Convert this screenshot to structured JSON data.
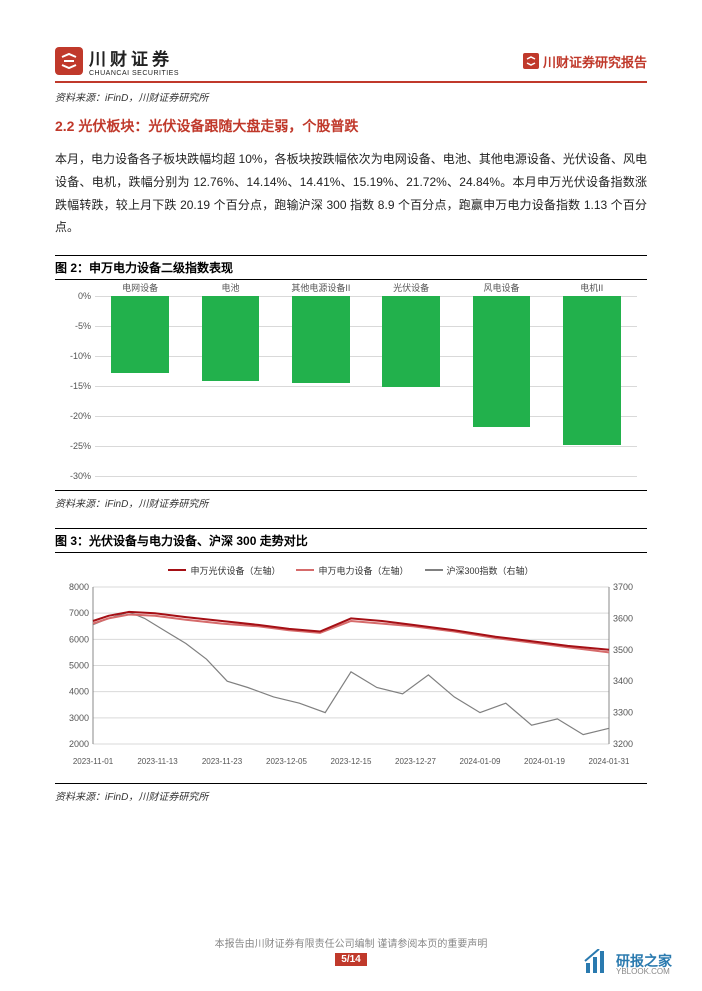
{
  "header": {
    "logo_cn": "川财证券",
    "logo_en": "CHUANCAI SECURITIES",
    "right_label": "川财证券研究报告"
  },
  "source_top": "资料来源：iFinD，川财证券研究所",
  "section_title": "2.2 光伏板块：光伏设备跟随大盘走弱，个股普跌",
  "body_text": "本月，电力设备各子板块跌幅均超 10%，各板块按跌幅依次为电网设备、电池、其他电源设备、光伏设备、风电设备、电机，跌幅分别为 12.76%、14.14%、14.41%、15.19%、21.72%、24.84%。本月申万光伏设备指数涨跌幅转跌，较上月下跌 20.19 个百分点，跑输沪深 300 指数 8.9 个百分点，跑赢申万电力设备指数 1.13 个百分点。",
  "figure2": {
    "title": "图 2：申万电力设备二级指数表现",
    "type": "bar",
    "categories": [
      "电网设备",
      "电池",
      "其他电源设备II",
      "光伏设备",
      "风电设备",
      "电机II"
    ],
    "values": [
      -12.76,
      -14.14,
      -14.41,
      -15.19,
      -21.72,
      -24.84
    ],
    "bar_color": "#22b14c",
    "ylim": [
      -30,
      0
    ],
    "ytick_step": 5,
    "yticks": [
      "0%",
      "-5%",
      "-10%",
      "-15%",
      "-20%",
      "-25%",
      "-30%"
    ],
    "grid_color": "#d9d9d9",
    "label_fontsize": 9,
    "source": "资料来源：iFinD，川财证券研究所"
  },
  "figure3": {
    "title": "图 3：光伏设备与电力设备、沪深 300 走势对比",
    "type": "line",
    "legend": [
      {
        "label": "申万光伏设备（左轴）",
        "color": "#a50f15"
      },
      {
        "label": "申万电力设备（左轴）",
        "color": "#d66b6b"
      },
      {
        "label": "沪深300指数（右轴）",
        "color": "#808080"
      }
    ],
    "left_ylim": [
      2000,
      8000
    ],
    "left_ytick_step": 1000,
    "left_yticks": [
      "8000",
      "7000",
      "6000",
      "5000",
      "4000",
      "3000",
      "2000"
    ],
    "right_ylim": [
      3200,
      3700
    ],
    "right_ytick_step": 100,
    "right_yticks": [
      "3700",
      "3600",
      "3500",
      "3400",
      "3300",
      "3200"
    ],
    "xticks": [
      "2023-11-01",
      "2023-11-13",
      "2023-11-23",
      "2023-12-05",
      "2023-12-15",
      "2023-12-27",
      "2024-01-09",
      "2024-01-19",
      "2024-01-31"
    ],
    "grid_color": "#d9d9d9",
    "series": {
      "pv": {
        "color": "#a50f15",
        "width": 2,
        "points": [
          [
            0,
            6700
          ],
          [
            3,
            6900
          ],
          [
            7,
            7050
          ],
          [
            12,
            7000
          ],
          [
            18,
            6850
          ],
          [
            25,
            6700
          ],
          [
            32,
            6550
          ],
          [
            38,
            6400
          ],
          [
            44,
            6300
          ],
          [
            50,
            6800
          ],
          [
            56,
            6700
          ],
          [
            62,
            6550
          ],
          [
            70,
            6350
          ],
          [
            78,
            6100
          ],
          [
            86,
            5900
          ],
          [
            92,
            5750
          ],
          [
            100,
            5600
          ]
        ]
      },
      "power": {
        "color": "#d66b6b",
        "width": 2,
        "points": [
          [
            0,
            6600
          ],
          [
            3,
            6800
          ],
          [
            7,
            6950
          ],
          [
            12,
            6900
          ],
          [
            18,
            6750
          ],
          [
            25,
            6600
          ],
          [
            32,
            6500
          ],
          [
            38,
            6350
          ],
          [
            44,
            6250
          ],
          [
            50,
            6700
          ],
          [
            56,
            6600
          ],
          [
            62,
            6500
          ],
          [
            70,
            6300
          ],
          [
            78,
            6050
          ],
          [
            86,
            5850
          ],
          [
            92,
            5700
          ],
          [
            100,
            5500
          ]
        ]
      },
      "csi300": {
        "color": "#808080",
        "width": 1.2,
        "points": [
          [
            0,
            3580
          ],
          [
            3,
            3600
          ],
          [
            7,
            3620
          ],
          [
            10,
            3600
          ],
          [
            14,
            3560
          ],
          [
            18,
            3520
          ],
          [
            22,
            3470
          ],
          [
            26,
            3400
          ],
          [
            30,
            3380
          ],
          [
            35,
            3350
          ],
          [
            40,
            3330
          ],
          [
            45,
            3300
          ],
          [
            50,
            3430
          ],
          [
            55,
            3380
          ],
          [
            60,
            3360
          ],
          [
            65,
            3420
          ],
          [
            70,
            3350
          ],
          [
            75,
            3300
          ],
          [
            80,
            3330
          ],
          [
            85,
            3260
          ],
          [
            90,
            3280
          ],
          [
            95,
            3230
          ],
          [
            100,
            3250
          ]
        ]
      }
    },
    "source": "资料来源：iFinD，川财证券研究所"
  },
  "footer": {
    "disclaimer": "本报告由川财证券有限责任公司编制  谨请参阅本页的重要声明",
    "page": "5/14"
  },
  "watermark": {
    "name": "研报之家",
    "url": "YBLOOK.COM"
  }
}
